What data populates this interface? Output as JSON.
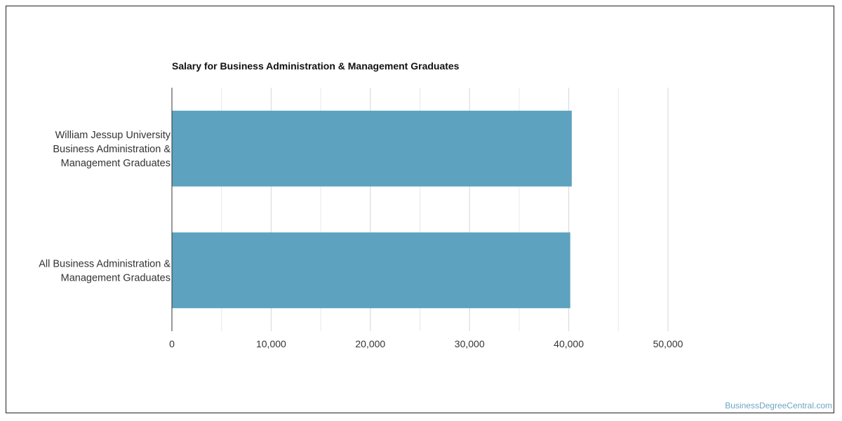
{
  "chart_data": {
    "type": "bar",
    "orientation": "horizontal",
    "title": "Salary for Business Administration & Management Graduates",
    "categories": [
      [
        "William Jessup University",
        "Business Administration &",
        "Management Graduates"
      ],
      [
        "All Business Administration &",
        "Management Graduates"
      ]
    ],
    "values": [
      40300,
      40150
    ],
    "xlim": [
      0,
      50000
    ],
    "xticks": [
      0,
      10000,
      20000,
      30000,
      40000,
      50000
    ],
    "xtick_labels": [
      "0",
      "10,000",
      "20,000",
      "30,000",
      "40,000",
      "50,000"
    ],
    "grid": true,
    "bar_color": "#5da2bf"
  },
  "credit": "BusinessDegreeCentral.com"
}
